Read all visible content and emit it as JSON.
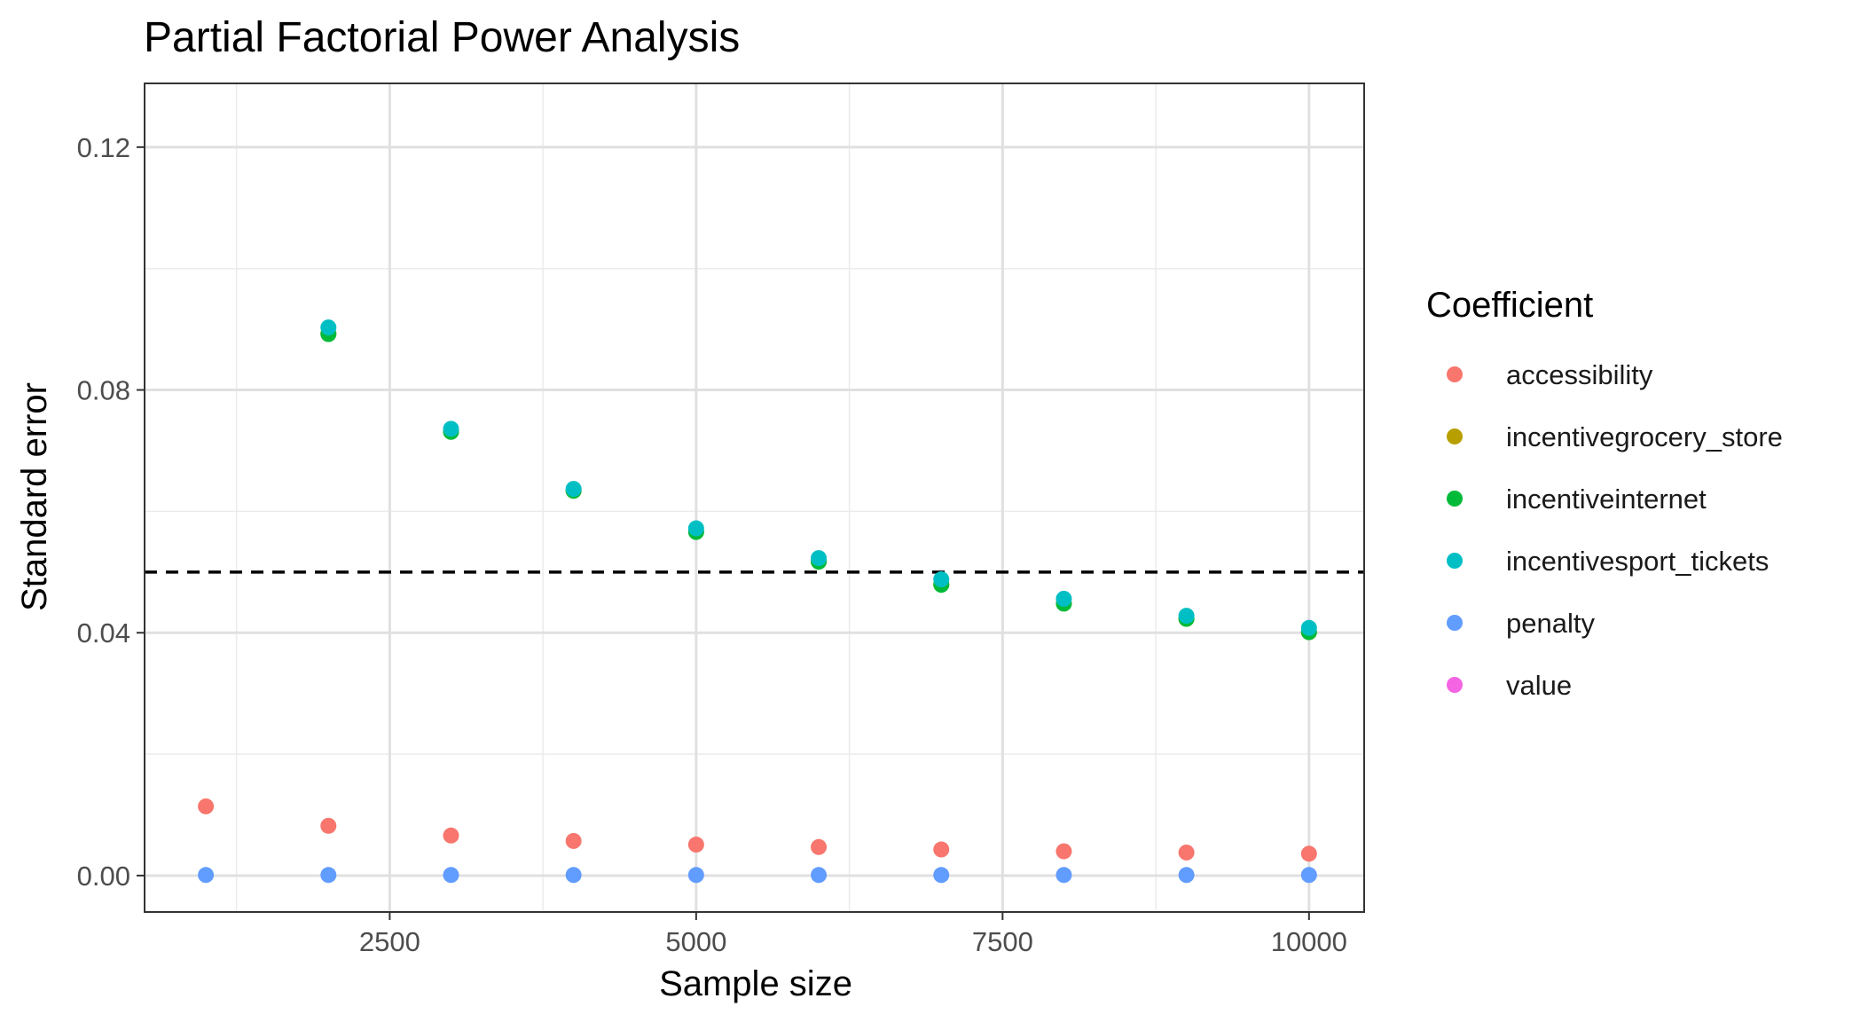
{
  "chart_data": {
    "type": "scatter",
    "title": "Partial Factorial Power Analysis",
    "xlabel": "Sample size",
    "ylabel": "Standard error",
    "xlim": [
      500,
      10450
    ],
    "ylim": [
      -0.006,
      0.1305
    ],
    "x_ticks": [
      2500,
      5000,
      7500,
      10000
    ],
    "x_tick_labels": [
      "2500",
      "5000",
      "7500",
      "10000"
    ],
    "x_minor_ticks": [
      1250,
      3750,
      6250,
      8750
    ],
    "y_ticks": [
      0,
      0.04,
      0.08,
      0.12
    ],
    "y_tick_labels": [
      "0.00",
      "0.04",
      "0.08",
      "0.12"
    ],
    "y_minor_ticks": [
      0.02,
      0.06,
      0.1
    ],
    "grid": true,
    "reference_line": {
      "y": 0.05,
      "style": "dashed"
    },
    "legend": {
      "title": "Coefficient",
      "position": "right"
    },
    "series": [
      {
        "name": "accessibility",
        "color": "#F8766D",
        "x": [
          1000,
          2000,
          3000,
          4000,
          5000,
          6000,
          7000,
          8000,
          9000,
          10000
        ],
        "y": [
          0.0114,
          0.0082,
          0.0066,
          0.0057,
          0.0051,
          0.0047,
          0.0043,
          0.004,
          0.0038,
          0.0036
        ]
      },
      {
        "name": "incentivegrocery_store",
        "color": "#B79F00",
        "x": [
          2000,
          3000,
          4000,
          5000,
          6000,
          7000,
          8000,
          9000,
          10000
        ],
        "y": [
          0.0893,
          0.0732,
          0.0634,
          0.0567,
          0.0518,
          0.048,
          0.0449,
          0.0423,
          0.0401
        ]
      },
      {
        "name": "incentiveinternet",
        "color": "#00BA38",
        "x": [
          2000,
          3000,
          4000,
          5000,
          6000,
          7000,
          8000,
          9000,
          10000
        ],
        "y": [
          0.0892,
          0.0731,
          0.0634,
          0.0566,
          0.0517,
          0.0479,
          0.0448,
          0.0423,
          0.0401
        ]
      },
      {
        "name": "incentivesport_tickets",
        "color": "#00BFC4",
        "x": [
          2000,
          3000,
          4000,
          5000,
          6000,
          7000,
          8000,
          9000,
          10000
        ],
        "y": [
          0.0903,
          0.0736,
          0.0637,
          0.0572,
          0.0523,
          0.0488,
          0.0456,
          0.0428,
          0.0408
        ]
      },
      {
        "name": "penalty",
        "color": "#619CFF",
        "x": [
          1000,
          2000,
          3000,
          4000,
          5000,
          6000,
          7000,
          8000,
          9000,
          10000
        ],
        "y": [
          0.0001,
          0.0001,
          0.0001,
          0.0001,
          0.0001,
          0.0001,
          0.0001,
          0.0001,
          0.0001,
          0.0001
        ]
      },
      {
        "name": "value",
        "color": "#F564E3",
        "x": [],
        "y": []
      }
    ]
  }
}
